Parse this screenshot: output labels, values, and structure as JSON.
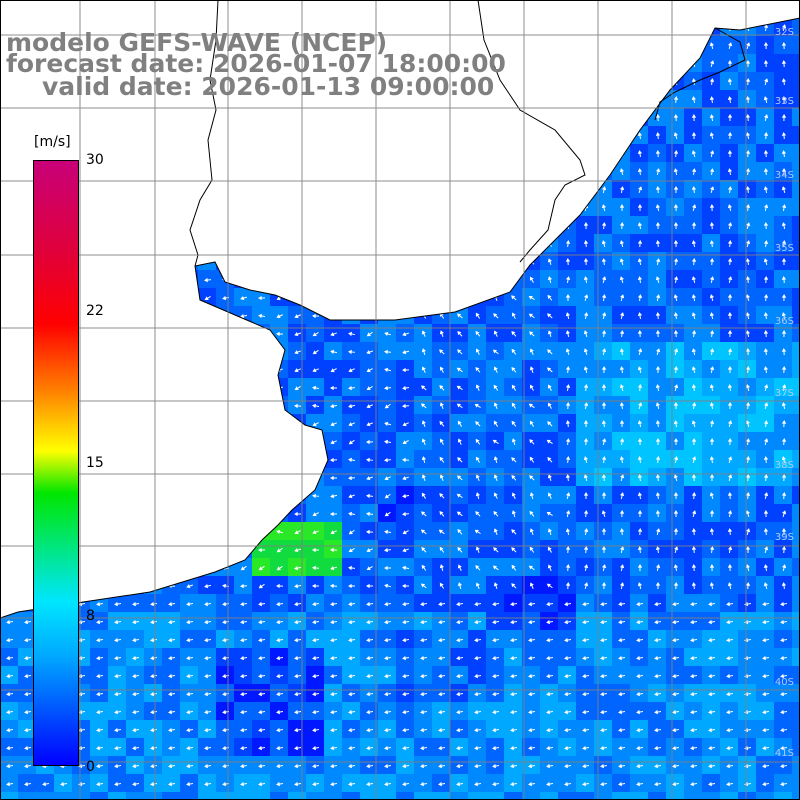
{
  "title": {
    "line1": "modelo GEFS-WAVE (NCEP)",
    "line2": "forecast date: 2026-01-07 18:00:00",
    "line3": "valid date: 2026-01-13 09:00:00"
  },
  "colorbar": {
    "unit": "[m/s]",
    "ticks": [
      "30",
      "22",
      "15",
      "8",
      "0"
    ],
    "min": 0,
    "max": 30,
    "colors": [
      "#0000ff",
      "#00a8ff",
      "#00e6ff",
      "#00e600",
      "#ffff00",
      "#ff8000",
      "#ff0000",
      "#c80078"
    ]
  },
  "latitude_labels": [
    "32S",
    "33S",
    "34S",
    "35S",
    "36S",
    "37S",
    "38S",
    "39S",
    "40S",
    "41S"
  ],
  "colors": {
    "land": "#ffffff",
    "coastline": "#000000",
    "grid": "#808080",
    "arrows": "#ffffff",
    "title": "#808080"
  }
}
